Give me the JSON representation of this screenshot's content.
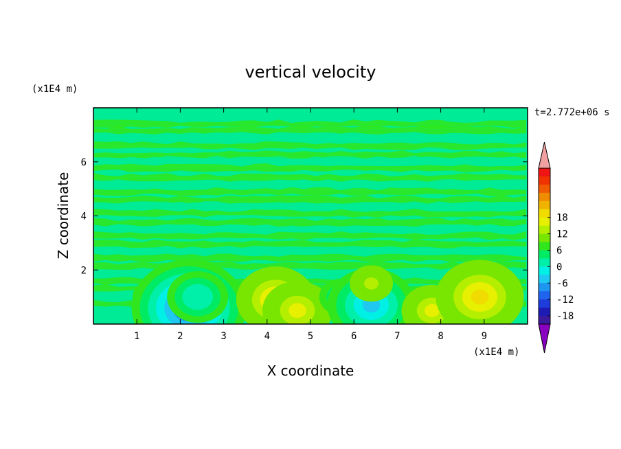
{
  "chart_data": {
    "type": "heatmap",
    "title": "vertical velocity",
    "time_label": "t=2.772e+06 s",
    "xlabel": "X coordinate",
    "ylabel": "Z coordinate",
    "x_unit": "(x1E4 m)",
    "y_unit": "(x1E4 m)",
    "xlim": [
      0,
      10
    ],
    "ylim": [
      0,
      8
    ],
    "x_ticks": [
      "1",
      "2",
      "3",
      "4",
      "5",
      "6",
      "7",
      "8",
      "9"
    ],
    "y_ticks": [
      "2",
      "4",
      "6"
    ],
    "colorbar": {
      "ticks": [
        "18",
        "12",
        "6",
        "0",
        "-6",
        "-12",
        "-18"
      ],
      "range": [
        -21,
        21
      ],
      "extend": "both",
      "colors": [
        "#8a00c0",
        "#3c1a9e",
        "#1c1cb4",
        "#1e3cdc",
        "#1e64ee",
        "#1e96f0",
        "#1ec8f0",
        "#00f0e6",
        "#00f0aa",
        "#00eb64",
        "#32e61e",
        "#78e600",
        "#b4ee00",
        "#e6f000",
        "#f0dc00",
        "#f0b400",
        "#f08c00",
        "#f05a00",
        "#f03200",
        "#f01414",
        "#f0a0a0"
      ]
    },
    "features": [
      {
        "x": 1.4,
        "z": 1.0,
        "w": -3
      },
      {
        "x": 1.6,
        "z": 1.1,
        "w": 3
      },
      {
        "x": 2.2,
        "z": 0.6,
        "w": -11
      },
      {
        "x": 2.4,
        "z": 1.0,
        "w": -5
      },
      {
        "x": 4.2,
        "z": 0.9,
        "w": 7
      },
      {
        "x": 4.7,
        "z": 0.5,
        "w": 6
      },
      {
        "x": 5.7,
        "z": 1.0,
        "w": -3
      },
      {
        "x": 6.4,
        "z": 0.7,
        "w": -8
      },
      {
        "x": 6.4,
        "z": 1.5,
        "w": 3
      },
      {
        "x": 7.8,
        "z": 0.5,
        "w": 5
      },
      {
        "x": 8.9,
        "z": 1.0,
        "w": 8
      }
    ]
  }
}
